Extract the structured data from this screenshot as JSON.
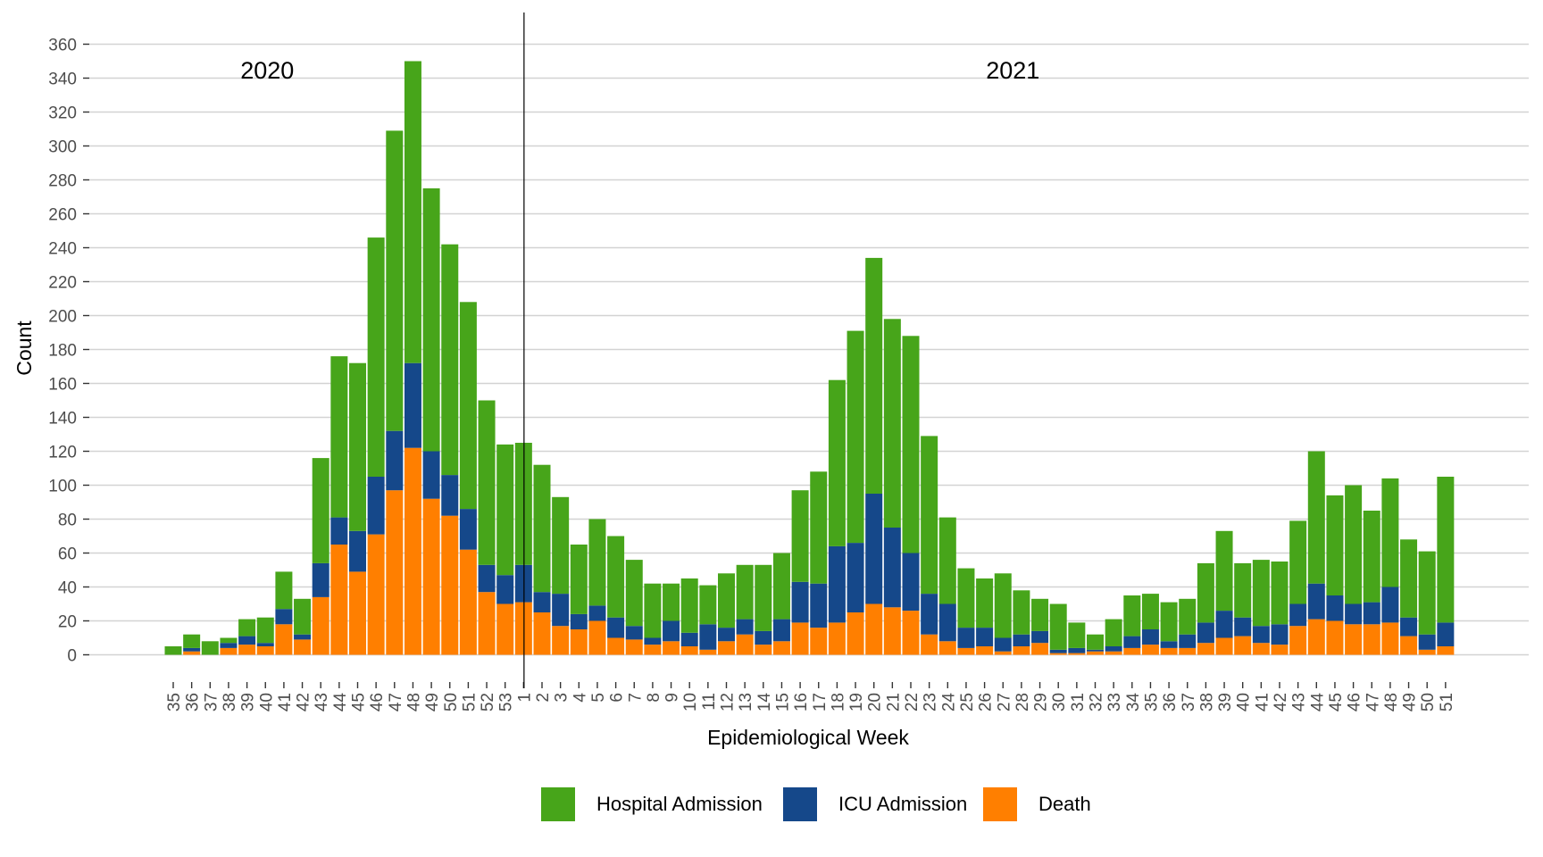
{
  "chart_data": {
    "type": "bar",
    "stacked": true,
    "title": "",
    "xlabel": "Epidemiological Week",
    "ylabel": "Count",
    "ylim": [
      0,
      360
    ],
    "yticks": [
      0,
      20,
      40,
      60,
      80,
      100,
      120,
      140,
      160,
      180,
      200,
      220,
      240,
      260,
      280,
      300,
      320,
      340,
      360
    ],
    "grid": "horizontal",
    "legend_position": "bottom",
    "annotations": [
      {
        "text": "2020",
        "anchor_category_index": 5
      },
      {
        "text": "2021",
        "anchor_category_index": 45
      }
    ],
    "year_divider_category_index": 19,
    "categories": [
      "35",
      "36",
      "37",
      "38",
      "39",
      "40",
      "41",
      "42",
      "43",
      "44",
      "45",
      "46",
      "47",
      "48",
      "49",
      "50",
      "51",
      "52",
      "53",
      "1",
      "2",
      "3",
      "4",
      "5",
      "6",
      "7",
      "8",
      "9",
      "10",
      "11",
      "12",
      "13",
      "14",
      "15",
      "16",
      "17",
      "18",
      "19",
      "20",
      "21",
      "22",
      "23",
      "24",
      "25",
      "26",
      "27",
      "28",
      "29",
      "30",
      "31",
      "32",
      "33",
      "34",
      "35",
      "36",
      "37",
      "38",
      "39",
      "40",
      "41",
      "42",
      "43",
      "44",
      "45",
      "46",
      "47",
      "48",
      "49",
      "50",
      "51"
    ],
    "series": [
      {
        "name": "Death",
        "color": "#ff7f00",
        "values": [
          0,
          2,
          0,
          4,
          6,
          5,
          18,
          9,
          34,
          65,
          49,
          71,
          97,
          122,
          92,
          82,
          62,
          37,
          30,
          31,
          25,
          17,
          15,
          20,
          10,
          9,
          6,
          8,
          5,
          3,
          8,
          12,
          6,
          8,
          19,
          16,
          19,
          25,
          30,
          28,
          26,
          12,
          8,
          4,
          5,
          2,
          5,
          7,
          1,
          1,
          2,
          2,
          4,
          6,
          4,
          4,
          7,
          10,
          11,
          7,
          6,
          17,
          21,
          20,
          18,
          18,
          19,
          11,
          3,
          5
        ]
      },
      {
        "name": "ICU Admission",
        "color": "#15488a",
        "values": [
          0,
          2,
          0,
          3,
          5,
          2,
          9,
          3,
          20,
          16,
          24,
          34,
          35,
          50,
          28,
          24,
          24,
          16,
          17,
          22,
          12,
          19,
          9,
          9,
          12,
          8,
          4,
          12,
          8,
          15,
          8,
          9,
          8,
          13,
          24,
          26,
          45,
          41,
          65,
          47,
          34,
          24,
          22,
          12,
          11,
          8,
          7,
          7,
          2,
          3,
          1,
          3,
          7,
          9,
          4,
          8,
          12,
          16,
          11,
          10,
          12,
          13,
          21,
          15,
          12,
          13,
          21,
          11,
          9,
          14
        ]
      },
      {
        "name": "Hospital Admission",
        "color": "#47a51a",
        "values": [
          5,
          8,
          8,
          3,
          10,
          15,
          22,
          21,
          62,
          95,
          99,
          141,
          177,
          178,
          155,
          136,
          122,
          97,
          77,
          72,
          75,
          57,
          41,
          51,
          48,
          39,
          32,
          22,
          32,
          23,
          32,
          32,
          39,
          39,
          54,
          66,
          98,
          125,
          139,
          123,
          128,
          93,
          51,
          35,
          29,
          38,
          26,
          19,
          27,
          15,
          9,
          16,
          24,
          21,
          23,
          21,
          35,
          47,
          32,
          39,
          37,
          49,
          78,
          59,
          70,
          54,
          64,
          46,
          49,
          86
        ]
      }
    ],
    "totals": [
      5,
      12,
      8,
      10,
      21,
      22,
      49,
      33,
      116,
      176,
      172,
      246,
      309,
      350,
      275,
      242,
      208,
      150,
      124,
      125,
      112,
      93,
      65,
      80,
      70,
      56,
      42,
      42,
      45,
      41,
      48,
      53,
      53,
      60,
      97,
      108,
      162,
      191,
      234,
      198,
      188,
      129,
      81,
      51,
      45,
      48,
      38,
      33,
      30,
      19,
      12,
      21,
      35,
      36,
      31,
      33,
      54,
      73,
      54,
      56,
      55,
      79,
      120,
      94,
      100,
      85,
      104,
      68,
      61,
      105
    ]
  },
  "legend": {
    "items": [
      {
        "label": "Hospital Admission",
        "color": "#47a51a"
      },
      {
        "label": "ICU Admission",
        "color": "#15488a"
      },
      {
        "label": "Death",
        "color": "#ff7f00"
      }
    ]
  }
}
